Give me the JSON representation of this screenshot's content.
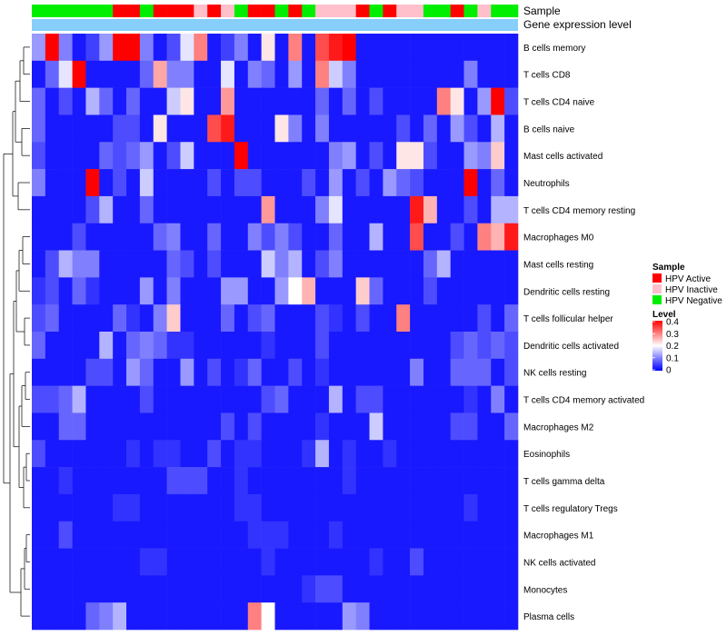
{
  "chart_data": {
    "type": "heatmap",
    "annotation_labels": [
      "Sample",
      "Gene expression level"
    ],
    "row_labels": [
      "B cells memory",
      "T cells CD8",
      "T cells CD4 naive",
      "B cells naive",
      "Mast cells activated",
      "Neutrophils",
      "T cells CD4 memory resting",
      "Macrophages M0",
      "Mast cells resting",
      "Dendritic cells resting",
      "T cells follicular helper",
      "Dendritic cells activated",
      "NK cells resting",
      "T cells CD4 memory activated",
      "Macrophages M2",
      "Eosinophils",
      "T cells gamma delta",
      "T cells regulatory  Tregs",
      "Macrophages M1",
      "NK cells activated",
      "Monocytes",
      "Plasma cells"
    ],
    "sample_groups": [
      "HPV Negative",
      "HPV Negative",
      "HPV Negative",
      "HPV Negative",
      "HPV Negative",
      "HPV Negative",
      "HPV Active",
      "HPV Active",
      "HPV Negative",
      "HPV Active",
      "HPV Active",
      "HPV Active",
      "HPV Inactive",
      "HPV Active",
      "HPV Inactive",
      "HPV Negative",
      "HPV Active",
      "HPV Active",
      "HPV Negative",
      "HPV Active",
      "HPV Negative",
      "HPV Inactive",
      "HPV Inactive",
      "HPV Inactive",
      "HPV Active",
      "HPV Negative",
      "HPV Active",
      "HPV Inactive",
      "HPV Inactive",
      "HPV Negative",
      "HPV Negative",
      "HPV Active",
      "HPV Negative",
      "HPV Inactive",
      "HPV Negative",
      "HPV Negative"
    ],
    "values": [
      [
        0.12,
        0.42,
        0.1,
        0.02,
        0.05,
        0.12,
        0.45,
        0.45,
        0.1,
        0.02,
        0.06,
        0.18,
        0.3,
        0.02,
        0.05,
        0.1,
        0.02,
        0.22,
        0.02,
        0.3,
        0.02,
        0.34,
        0.38,
        0.43,
        0.02,
        0.02,
        0.02,
        0.02,
        0.02,
        0.02,
        0.02,
        0.02,
        0.02,
        0.02,
        0.02,
        0.02
      ],
      [
        0.02,
        0.08,
        0.18,
        0.43,
        0.02,
        0.02,
        0.02,
        0.02,
        0.08,
        0.27,
        0.1,
        0.1,
        0.02,
        0.02,
        0.18,
        0.02,
        0.1,
        0.08,
        0.02,
        0.12,
        0.02,
        0.3,
        0.16,
        0.1,
        0.02,
        0.02,
        0.02,
        0.02,
        0.02,
        0.02,
        0.02,
        0.02,
        0.1,
        0.02,
        0.02,
        0.02
      ],
      [
        0.08,
        0.02,
        0.06,
        0.02,
        0.14,
        0.08,
        0.02,
        0.08,
        0.02,
        0.02,
        0.16,
        0.22,
        0.02,
        0.02,
        0.28,
        0.02,
        0.02,
        0.02,
        0.02,
        0.02,
        0.02,
        0.08,
        0.02,
        0.08,
        0.02,
        0.06,
        0.02,
        0.02,
        0.02,
        0.02,
        0.3,
        0.22,
        0.02,
        0.12,
        0.43,
        0.06
      ],
      [
        0.08,
        0.02,
        0.02,
        0.02,
        0.02,
        0.02,
        0.06,
        0.06,
        0.02,
        0.22,
        0.02,
        0.02,
        0.02,
        0.34,
        0.38,
        0.02,
        0.02,
        0.02,
        0.22,
        0.1,
        0.02,
        0.1,
        0.02,
        0.02,
        0.02,
        0.02,
        0.02,
        0.06,
        0.02,
        0.08,
        0.02,
        0.12,
        0.06,
        0.02,
        0.14,
        0.02
      ],
      [
        0.06,
        0.02,
        0.02,
        0.02,
        0.02,
        0.08,
        0.06,
        0.08,
        0.12,
        0.02,
        0.06,
        0.16,
        0.02,
        0.02,
        0.02,
        0.45,
        0.02,
        0.02,
        0.02,
        0.02,
        0.02,
        0.02,
        0.1,
        0.12,
        0.02,
        0.06,
        0.02,
        0.22,
        0.22,
        0.06,
        0.02,
        0.02,
        0.12,
        0.1,
        0.24,
        0.02
      ],
      [
        0.1,
        0.02,
        0.02,
        0.02,
        0.45,
        0.02,
        0.06,
        0.02,
        0.16,
        0.02,
        0.02,
        0.02,
        0.02,
        0.06,
        0.02,
        0.06,
        0.06,
        0.02,
        0.02,
        0.02,
        0.06,
        0.02,
        0.12,
        0.02,
        0.06,
        0.02,
        0.12,
        0.08,
        0.06,
        0.02,
        0.02,
        0.02,
        0.45,
        0.02,
        0.08,
        0.02
      ],
      [
        0.02,
        0.02,
        0.02,
        0.02,
        0.06,
        0.14,
        0.02,
        0.02,
        0.08,
        0.02,
        0.02,
        0.02,
        0.02,
        0.02,
        0.02,
        0.02,
        0.02,
        0.28,
        0.02,
        0.02,
        0.02,
        0.1,
        0.18,
        0.02,
        0.02,
        0.02,
        0.02,
        0.02,
        0.38,
        0.26,
        0.02,
        0.02,
        0.06,
        0.02,
        0.14,
        0.14
      ],
      [
        0.02,
        0.02,
        0.02,
        0.06,
        0.02,
        0.02,
        0.02,
        0.02,
        0.02,
        0.08,
        0.1,
        0.02,
        0.02,
        0.08,
        0.02,
        0.02,
        0.1,
        0.06,
        0.1,
        0.06,
        0.02,
        0.02,
        0.08,
        0.02,
        0.02,
        0.14,
        0.02,
        0.02,
        0.34,
        0.02,
        0.02,
        0.06,
        0.02,
        0.3,
        0.26,
        0.38
      ],
      [
        0.02,
        0.06,
        0.14,
        0.1,
        0.1,
        0.02,
        0.02,
        0.02,
        0.02,
        0.02,
        0.08,
        0.06,
        0.02,
        0.06,
        0.02,
        0.02,
        0.02,
        0.16,
        0.1,
        0.14,
        0.02,
        0.06,
        0.1,
        0.02,
        0.02,
        0.02,
        0.02,
        0.02,
        0.02,
        0.08,
        0.14,
        0.02,
        0.02,
        0.02,
        0.02,
        0.02
      ],
      [
        0.04,
        0.06,
        0.02,
        0.08,
        0.04,
        0.02,
        0.02,
        0.02,
        0.12,
        0.02,
        0.1,
        0.02,
        0.02,
        0.02,
        0.12,
        0.12,
        0.02,
        0.02,
        0.12,
        0.2,
        0.26,
        0.02,
        0.02,
        0.02,
        0.24,
        0.08,
        0.02,
        0.02,
        0.02,
        0.06,
        0.02,
        0.02,
        0.02,
        0.02,
        0.02,
        0.02
      ],
      [
        0.06,
        0.08,
        0.02,
        0.02,
        0.02,
        0.02,
        0.08,
        0.04,
        0.02,
        0.1,
        0.24,
        0.02,
        0.02,
        0.02,
        0.08,
        0.02,
        0.06,
        0.08,
        0.02,
        0.02,
        0.02,
        0.06,
        0.04,
        0.02,
        0.06,
        0.02,
        0.02,
        0.3,
        0.02,
        0.02,
        0.02,
        0.02,
        0.02,
        0.06,
        0.02,
        0.08
      ],
      [
        0.08,
        0.02,
        0.02,
        0.02,
        0.02,
        0.14,
        0.02,
        0.08,
        0.1,
        0.08,
        0.04,
        0.04,
        0.02,
        0.02,
        0.02,
        0.02,
        0.02,
        0.04,
        0.02,
        0.02,
        0.02,
        0.06,
        0.02,
        0.02,
        0.02,
        0.02,
        0.02,
        0.02,
        0.02,
        0.02,
        0.02,
        0.06,
        0.08,
        0.06,
        0.08,
        0.06
      ],
      [
        0.02,
        0.02,
        0.02,
        0.02,
        0.06,
        0.06,
        0.02,
        0.12,
        0.08,
        0.02,
        0.02,
        0.12,
        0.02,
        0.06,
        0.02,
        0.04,
        0.08,
        0.02,
        0.02,
        0.06,
        0.02,
        0.04,
        0.02,
        0.02,
        0.02,
        0.02,
        0.02,
        0.02,
        0.1,
        0.02,
        0.02,
        0.08,
        0.08,
        0.08,
        0.02,
        0.06
      ],
      [
        0.06,
        0.06,
        0.08,
        0.14,
        0.02,
        0.02,
        0.02,
        0.02,
        0.06,
        0.02,
        0.02,
        0.02,
        0.02,
        0.02,
        0.02,
        0.02,
        0.02,
        0.06,
        0.08,
        0.02,
        0.02,
        0.02,
        0.14,
        0.02,
        0.06,
        0.06,
        0.02,
        0.02,
        0.02,
        0.02,
        0.02,
        0.02,
        0.04,
        0.02,
        0.1,
        0.02
      ],
      [
        0.02,
        0.02,
        0.08,
        0.08,
        0.02,
        0.02,
        0.02,
        0.02,
        0.02,
        0.02,
        0.02,
        0.02,
        0.02,
        0.02,
        0.06,
        0.02,
        0.06,
        0.02,
        0.02,
        0.02,
        0.02,
        0.04,
        0.02,
        0.02,
        0.02,
        0.16,
        0.02,
        0.02,
        0.02,
        0.02,
        0.02,
        0.06,
        0.06,
        0.02,
        0.02,
        0.08
      ],
      [
        0.06,
        0.02,
        0.02,
        0.02,
        0.02,
        0.02,
        0.02,
        0.04,
        0.02,
        0.04,
        0.04,
        0.02,
        0.02,
        0.06,
        0.02,
        0.04,
        0.04,
        0.02,
        0.02,
        0.02,
        0.04,
        0.14,
        0.02,
        0.04,
        0.02,
        0.02,
        0.04,
        0.02,
        0.02,
        0.02,
        0.02,
        0.02,
        0.02,
        0.02,
        0.02,
        0.02
      ],
      [
        0.02,
        0.02,
        0.04,
        0.02,
        0.02,
        0.02,
        0.02,
        0.02,
        0.02,
        0.02,
        0.06,
        0.06,
        0.06,
        0.02,
        0.02,
        0.04,
        0.02,
        0.02,
        0.02,
        0.02,
        0.02,
        0.02,
        0.02,
        0.04,
        0.02,
        0.02,
        0.02,
        0.02,
        0.02,
        0.02,
        0.02,
        0.02,
        0.02,
        0.02,
        0.02,
        0.02
      ],
      [
        0.02,
        0.02,
        0.02,
        0.02,
        0.02,
        0.02,
        0.04,
        0.04,
        0.02,
        0.02,
        0.02,
        0.02,
        0.02,
        0.02,
        0.02,
        0.04,
        0.04,
        0.02,
        0.02,
        0.02,
        0.02,
        0.02,
        0.02,
        0.02,
        0.02,
        0.02,
        0.02,
        0.02,
        0.02,
        0.02,
        0.02,
        0.02,
        0.04,
        0.02,
        0.02,
        0.02
      ],
      [
        0.02,
        0.02,
        0.06,
        0.02,
        0.02,
        0.02,
        0.02,
        0.02,
        0.02,
        0.02,
        0.02,
        0.02,
        0.02,
        0.02,
        0.02,
        0.02,
        0.04,
        0.04,
        0.04,
        0.02,
        0.02,
        0.02,
        0.04,
        0.02,
        0.02,
        0.02,
        0.02,
        0.02,
        0.02,
        0.02,
        0.02,
        0.02,
        0.02,
        0.02,
        0.02,
        0.02
      ],
      [
        0.02,
        0.02,
        0.02,
        0.02,
        0.02,
        0.02,
        0.02,
        0.02,
        0.04,
        0.04,
        0.02,
        0.02,
        0.02,
        0.02,
        0.02,
        0.02,
        0.02,
        0.04,
        0.02,
        0.02,
        0.02,
        0.02,
        0.02,
        0.02,
        0.02,
        0.04,
        0.02,
        0.02,
        0.06,
        0.02,
        0.02,
        0.02,
        0.02,
        0.02,
        0.02,
        0.02
      ],
      [
        0.02,
        0.02,
        0.02,
        0.02,
        0.02,
        0.02,
        0.02,
        0.02,
        0.02,
        0.02,
        0.02,
        0.02,
        0.02,
        0.02,
        0.02,
        0.02,
        0.02,
        0.02,
        0.02,
        0.02,
        0.04,
        0.06,
        0.06,
        0.02,
        0.02,
        0.02,
        0.02,
        0.02,
        0.02,
        0.02,
        0.02,
        0.02,
        0.02,
        0.02,
        0.02,
        0.02
      ],
      [
        0.02,
        0.02,
        0.02,
        0.02,
        0.08,
        0.1,
        0.14,
        0.02,
        0.02,
        0.02,
        0.02,
        0.02,
        0.02,
        0.02,
        0.02,
        0.02,
        0.3,
        0.2,
        0.02,
        0.02,
        0.02,
        0.02,
        0.02,
        0.12,
        0.1,
        0.02,
        0.02,
        0.02,
        0.02,
        0.02,
        0.02,
        0.02,
        0.02,
        0.02,
        0.02,
        0.02
      ]
    ],
    "legend": {
      "sample_title": "Sample",
      "sample_entries": [
        {
          "label": "HPV Active",
          "color": "#FF0000"
        },
        {
          "label": "HPV Inactive",
          "color": "#FFC0CB"
        },
        {
          "label": "HPV Negative",
          "color": "#00EE00"
        }
      ],
      "level_title": "Level",
      "level_ticks": [
        "0.4",
        "0.3",
        "0.2",
        "0.1",
        "0"
      ],
      "level_range": [
        0,
        0.4
      ],
      "colors": {
        "low": "#0000FF",
        "mid": "#FFFFFF",
        "high": "#FF0000"
      },
      "placement": "right"
    },
    "gene_expression_color": "#87CEFA",
    "grid": false
  }
}
